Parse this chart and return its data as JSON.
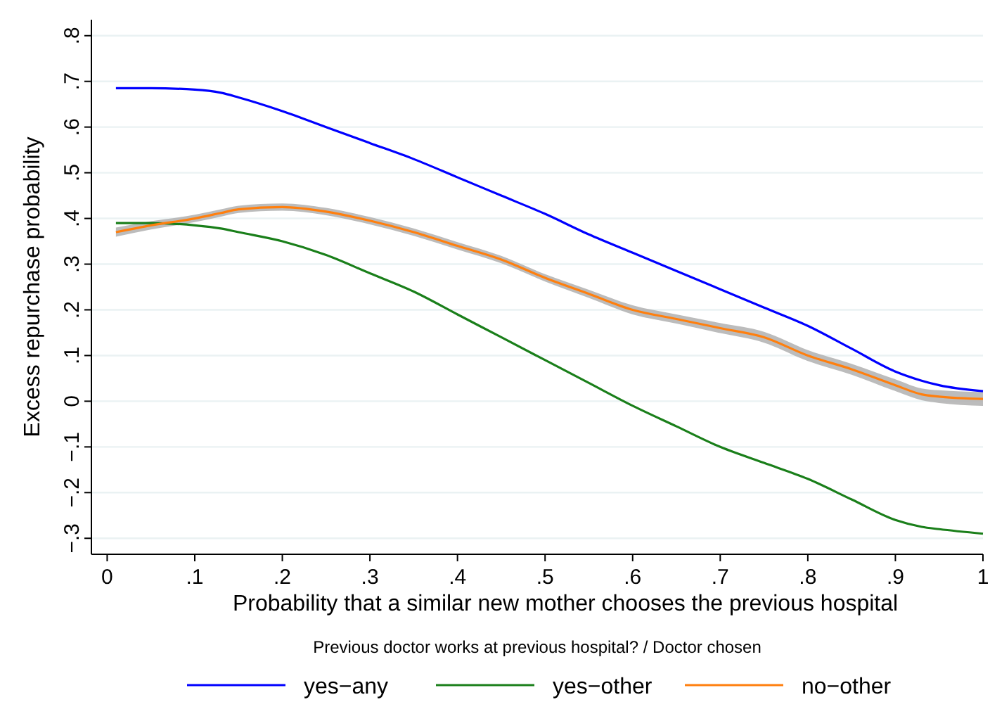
{
  "chart_data": {
    "type": "line",
    "xlabel": "Probability that a similar new mother chooses the previous hospital",
    "ylabel": "Excess repurchase probability",
    "legend_title": "Previous doctor works at previous hospital? / Doctor chosen",
    "x": [
      0.01,
      0.05,
      0.1,
      0.13,
      0.15,
      0.2,
      0.25,
      0.3,
      0.35,
      0.4,
      0.45,
      0.5,
      0.55,
      0.6,
      0.65,
      0.7,
      0.75,
      0.8,
      0.85,
      0.9,
      0.93,
      0.95,
      1
    ],
    "series": [
      {
        "name": "yes−any",
        "color": "#0000ff",
        "values": [
          0.685,
          0.685,
          0.682,
          0.675,
          0.665,
          0.635,
          0.6,
          0.565,
          0.53,
          0.49,
          0.45,
          0.41,
          0.365,
          0.325,
          0.285,
          0.245,
          0.205,
          0.165,
          0.115,
          0.065,
          0.045,
          0.035,
          0.022
        ]
      },
      {
        "name": "yes−other",
        "color": "#1a7f1a",
        "values": [
          0.39,
          0.39,
          0.385,
          0.378,
          0.37,
          0.35,
          0.32,
          0.28,
          0.24,
          0.19,
          0.14,
          0.09,
          0.04,
          -0.01,
          -0.055,
          -0.1,
          -0.135,
          -0.17,
          -0.215,
          -0.26,
          -0.275,
          -0.28,
          -0.29
        ]
      },
      {
        "name": "no−other",
        "color": "#ff7f0e",
        "values": [
          0.37,
          0.385,
          0.4,
          0.412,
          0.42,
          0.425,
          0.415,
          0.395,
          0.37,
          0.34,
          0.31,
          0.27,
          0.235,
          0.2,
          0.18,
          0.16,
          0.14,
          0.1,
          0.07,
          0.035,
          0.015,
          0.01,
          0.005
        ],
        "lower": [
          0.36,
          0.376,
          0.392,
          0.404,
          0.412,
          0.417,
          0.407,
          0.387,
          0.362,
          0.332,
          0.302,
          0.262,
          0.226,
          0.19,
          0.17,
          0.149,
          0.128,
          0.088,
          0.058,
          0.022,
          0.002,
          -0.004,
          -0.01
        ],
        "upper": [
          0.38,
          0.394,
          0.408,
          0.42,
          0.428,
          0.433,
          0.423,
          0.403,
          0.378,
          0.348,
          0.318,
          0.278,
          0.244,
          0.21,
          0.19,
          0.171,
          0.152,
          0.112,
          0.082,
          0.048,
          0.028,
          0.024,
          0.02
        ]
      }
    ],
    "xlim": [
      -0.018,
      1
    ],
    "xticks": [
      0,
      {
        "value": 0.1,
        "label": ".1"
      },
      {
        "value": 0.2,
        "label": ".2"
      },
      {
        "value": 0.3,
        "label": ".3"
      },
      {
        "value": 0.4,
        "label": ".4"
      },
      {
        "value": 0.5,
        "label": ".5"
      },
      {
        "value": 0.6,
        "label": ".6"
      },
      {
        "value": 0.7,
        "label": ".7"
      },
      {
        "value": 0.8,
        "label": ".8"
      },
      {
        "value": 0.9,
        "label": ".9"
      },
      1
    ],
    "ylim": [
      -0.335,
      0.835
    ],
    "yticks": [
      {
        "value": -0.3,
        "label": "−.3"
      },
      {
        "value": -0.2,
        "label": "−.2"
      },
      {
        "value": -0.1,
        "label": "−.1"
      },
      0,
      {
        "value": 0.1,
        "label": ".1"
      },
      {
        "value": 0.2,
        "label": ".2"
      },
      {
        "value": 0.3,
        "label": ".3"
      },
      {
        "value": 0.4,
        "label": ".4"
      },
      {
        "value": 0.5,
        "label": ".5"
      },
      {
        "value": 0.6,
        "label": ".6"
      },
      {
        "value": 0.7,
        "label": ".7"
      },
      {
        "value": 0.8,
        "label": ".8"
      }
    ],
    "grid": "y",
    "legend": "bottom",
    "line_style": "solid",
    "marker": "none"
  }
}
